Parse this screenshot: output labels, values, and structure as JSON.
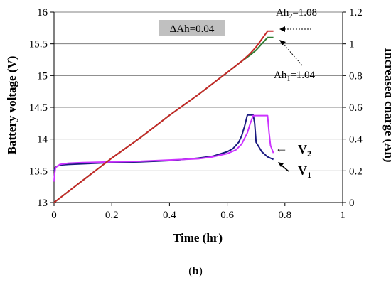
{
  "chart_data": {
    "type": "line",
    "xlabel": "Time (hr)",
    "ylabel": "Battery voltage (V)",
    "y2label": "Increased charge (Ah)",
    "xlim": [
      0,
      1
    ],
    "ylim": [
      13,
      16
    ],
    "y2lim": [
      0,
      1.2
    ],
    "x_ticks": [
      "0",
      "0.2",
      "0.4",
      "0.6",
      "0.8",
      "1"
    ],
    "y_ticks": [
      "13",
      "13.5",
      "14",
      "14.5",
      "15",
      "15.5",
      "16"
    ],
    "y2_ticks": [
      "0",
      "0.2",
      "0.4",
      "0.6",
      "0.8",
      "1",
      "1.2"
    ],
    "grid": {
      "horizontal": true,
      "vertical": false
    },
    "colors": {
      "V1": "#1a1a80",
      "V2": "#cc33ff",
      "Ah1": "#2e7d32",
      "Ah2": "#c62828",
      "grid": "#808080",
      "box": "#c0c0c0"
    },
    "series": [
      {
        "name": "V1",
        "axis": "left",
        "x": [
          0,
          0.005,
          0.02,
          0.05,
          0.1,
          0.2,
          0.3,
          0.4,
          0.5,
          0.55,
          0.6,
          0.62,
          0.64,
          0.65,
          0.66,
          0.67,
          0.68,
          0.69,
          0.695,
          0.7,
          0.72,
          0.74,
          0.76
        ],
        "y": [
          13.5,
          13.56,
          13.59,
          13.6,
          13.61,
          13.63,
          13.64,
          13.66,
          13.7,
          13.73,
          13.8,
          13.85,
          13.95,
          14.05,
          14.2,
          14.38,
          14.38,
          14.38,
          14.25,
          13.95,
          13.8,
          13.72,
          13.68
        ]
      },
      {
        "name": "V2",
        "axis": "left",
        "x": [
          0,
          0.002,
          0.005,
          0.02,
          0.05,
          0.1,
          0.2,
          0.3,
          0.4,
          0.5,
          0.55,
          0.6,
          0.63,
          0.65,
          0.67,
          0.68,
          0.69,
          0.7,
          0.71,
          0.72,
          0.73,
          0.74,
          0.745,
          0.75,
          0.76
        ],
        "y": [
          13.33,
          13.45,
          13.55,
          13.6,
          13.62,
          13.63,
          13.64,
          13.65,
          13.67,
          13.69,
          13.72,
          13.77,
          13.83,
          13.92,
          14.1,
          14.25,
          14.37,
          14.37,
          14.37,
          14.37,
          14.37,
          14.37,
          14.1,
          13.9,
          13.78
        ]
      },
      {
        "name": "Ah1",
        "axis": "right",
        "x": [
          0,
          0.1,
          0.2,
          0.3,
          0.4,
          0.5,
          0.6,
          0.65,
          0.68,
          0.7,
          0.72,
          0.74,
          0.76
        ],
        "y": [
          0,
          0.14,
          0.28,
          0.41,
          0.55,
          0.68,
          0.82,
          0.89,
          0.93,
          0.96,
          1.0,
          1.04,
          1.04
        ]
      },
      {
        "name": "Ah2",
        "axis": "right",
        "x": [
          0,
          0.1,
          0.2,
          0.3,
          0.4,
          0.5,
          0.6,
          0.65,
          0.68,
          0.7,
          0.72,
          0.74,
          0.76
        ],
        "y": [
          0,
          0.14,
          0.28,
          0.41,
          0.55,
          0.68,
          0.82,
          0.89,
          0.94,
          0.98,
          1.03,
          1.08,
          1.08
        ]
      }
    ],
    "annotations": {
      "delta_box": "ΔAh=0.04",
      "ah2": {
        "text": "Ah",
        "sub": "2",
        "value": "=1.08"
      },
      "ah1": {
        "text": "Ah",
        "sub": "1",
        "value": "=1.04"
      },
      "v2": {
        "text": "V",
        "sub": "2"
      },
      "v1": {
        "text": "V",
        "sub": "1"
      },
      "arrow_glyph": "←"
    },
    "caption": {
      "open": "(",
      "letter": "b",
      "close": ")"
    }
  }
}
